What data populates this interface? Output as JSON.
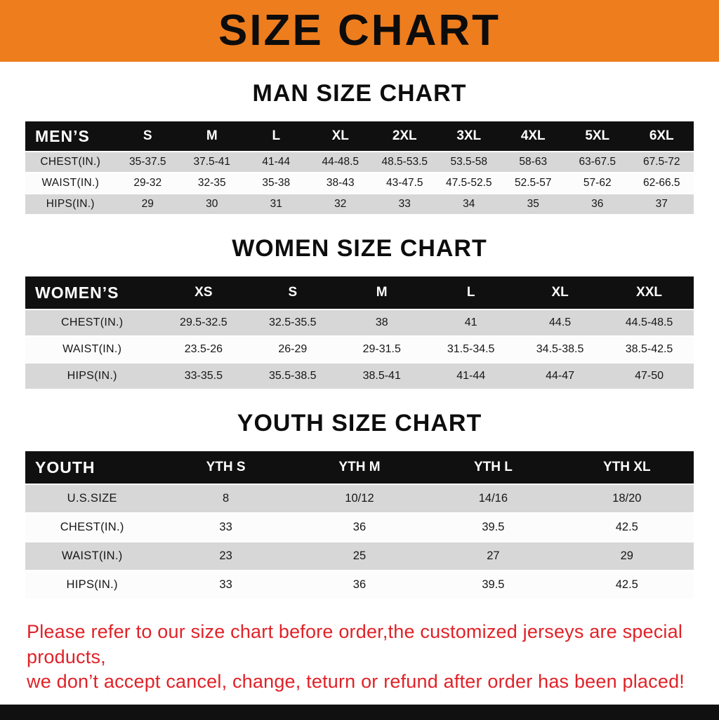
{
  "banner": {
    "title": "SIZE CHART"
  },
  "colors": {
    "banner_orange": "#ee7d1e",
    "header_black": "#101010",
    "row_gray": "#d7d7d7",
    "row_white": "#fcfcfc",
    "note_red": "#e02228"
  },
  "sections": {
    "men": {
      "heading": "MAN SIZE CHART",
      "table": {
        "label": "MEN’S",
        "columns": [
          "S",
          "M",
          "L",
          "XL",
          "2XL",
          "3XL",
          "4XL",
          "5XL",
          "6XL"
        ],
        "rows": [
          {
            "label": "CHEST(IN.)",
            "values": [
              "35-37.5",
              "37.5-41",
              "41-44",
              "44-48.5",
              "48.5-53.5",
              "53.5-58",
              "58-63",
              "63-67.5",
              "67.5-72"
            ]
          },
          {
            "label": "WAIST(IN.)",
            "values": [
              "29-32",
              "32-35",
              "35-38",
              "38-43",
              "43-47.5",
              "47.5-52.5",
              "52.5-57",
              "57-62",
              "62-66.5"
            ]
          },
          {
            "label": "HIPS(IN.)",
            "values": [
              "29",
              "30",
              "31",
              "32",
              "33",
              "34",
              "35",
              "36",
              "37"
            ]
          }
        ]
      }
    },
    "women": {
      "heading": "WOMEN SIZE CHART",
      "table": {
        "label": "WOMEN’S",
        "columns": [
          "XS",
          "S",
          "M",
          "L",
          "XL",
          "XXL"
        ],
        "rows": [
          {
            "label": "CHEST(IN.)",
            "values": [
              "29.5-32.5",
              "32.5-35.5",
              "38",
              "41",
              "44.5",
              "44.5-48.5"
            ]
          },
          {
            "label": "WAIST(IN.)",
            "values": [
              "23.5-26",
              "26-29",
              "29-31.5",
              "31.5-34.5",
              "34.5-38.5",
              "38.5-42.5"
            ]
          },
          {
            "label": "HIPS(IN.)",
            "values": [
              "33-35.5",
              "35.5-38.5",
              "38.5-41",
              "41-44",
              "44-47",
              "47-50"
            ]
          }
        ]
      }
    },
    "youth": {
      "heading": "YOUTH SIZE CHART",
      "table": {
        "label": "YOUTH",
        "columns": [
          "YTH S",
          "YTH M",
          "YTH L",
          "YTH XL"
        ],
        "rows": [
          {
            "label": "U.S.SIZE",
            "values": [
              "8",
              "10/12",
              "14/16",
              "18/20"
            ]
          },
          {
            "label": "CHEST(IN.)",
            "values": [
              "33",
              "36",
              "39.5",
              "42.5"
            ]
          },
          {
            "label": "WAIST(IN.)",
            "values": [
              "23",
              "25",
              "27",
              "29"
            ]
          },
          {
            "label": "HIPS(IN.)",
            "values": [
              "33",
              "36",
              "39.5",
              "42.5"
            ]
          }
        ]
      }
    }
  },
  "footer": {
    "line1": "Please refer to our size chart before order,the customized jerseys are special products,",
    "line2": "we don’t accept cancel, change, teturn or refund after order has been placed!"
  }
}
